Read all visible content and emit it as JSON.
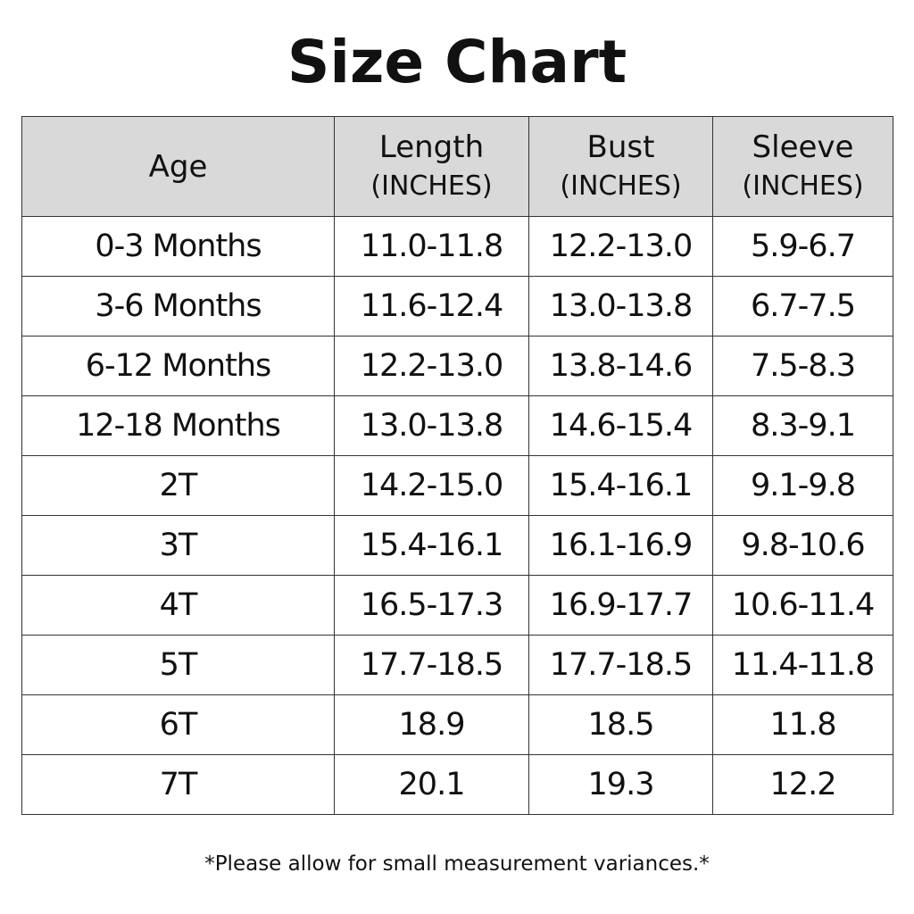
{
  "header": {
    "title": "Size Chart"
  },
  "table": {
    "headers": [
      [
        "Age"
      ],
      [
        "Length",
        "(INCHES)"
      ],
      [
        "Bust",
        "(INCHES)"
      ],
      [
        "Sleeve",
        "(INCHES)"
      ]
    ],
    "rows": [
      [
        "0-3 Months",
        "11.0-11.8",
        "12.2-13.0",
        "5.9-6.7"
      ],
      [
        "3-6 Months",
        "11.6-12.4",
        "13.0-13.8",
        "6.7-7.5"
      ],
      [
        "6-12 Months",
        "12.2-13.0",
        "13.8-14.6",
        "7.5-8.3"
      ],
      [
        "12-18 Months",
        "13.0-13.8",
        "14.6-15.4",
        "8.3-9.1"
      ],
      [
        "2T",
        "14.2-15.0",
        "15.4-16.1",
        "9.1-9.8"
      ],
      [
        "3T",
        "15.4-16.1",
        "16.1-16.9",
        "9.8-10.6"
      ],
      [
        "4T",
        "16.5-17.3",
        "16.9-17.7",
        "10.6-11.4"
      ],
      [
        "5T",
        "17.7-18.5",
        "17.7-18.5",
        "11.4-11.8"
      ],
      [
        "6T",
        "18.9",
        "18.5",
        "11.8"
      ],
      [
        "7T",
        "20.1",
        "19.3",
        "12.2"
      ]
    ]
  },
  "footer": {
    "note": "*Please allow for small measurement variances.*"
  }
}
